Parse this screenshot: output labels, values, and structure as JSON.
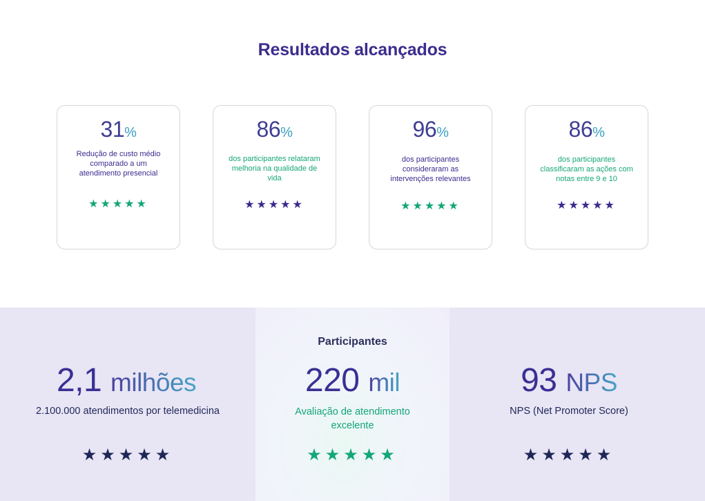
{
  "header": {
    "title_regular": "Resultados ",
    "title_bold": "alcançados"
  },
  "cards": [
    {
      "value": "31",
      "unit": "%",
      "description": "Redução de custo médio comparado a um atendimento presencial",
      "stars": "★★★★★",
      "rating": 5
    },
    {
      "value": "86",
      "unit": "%",
      "description": "dos participantes relataram melhoria na qualidade de vida",
      "stars": "★★★★★",
      "rating": 5
    },
    {
      "value": "96",
      "unit": "%",
      "description": "dos participantes consideraram as intervenções relevantes",
      "stars": "★★★★★",
      "rating": 5
    },
    {
      "value": "86",
      "unit": "%",
      "description": "dos participantes classificaram as ações com notas entre 9 e 10",
      "stars": "★★★★★",
      "rating": 5
    }
  ],
  "panels": [
    {
      "heading": "",
      "value": "2,1",
      "unit": "milhões",
      "description": "2.100.000 atendimentos por telemedicina",
      "stars": "★★★★★",
      "rating": 5
    },
    {
      "heading": "Participantes",
      "value": "220",
      "unit": "mil",
      "description": "Avaliação de atendimento excelente",
      "stars": "★★★★★",
      "rating": 5
    },
    {
      "heading": "",
      "value": "93",
      "unit": "NPS",
      "description": "NPS (Net Promoter Score)",
      "stars": "★★★★★",
      "rating": 5
    }
  ],
  "colors": {
    "title": "#3d2c8d",
    "star_green": "#14a678",
    "star_purple": "#3c2a8e",
    "star_navy": "#1e2756",
    "bottom_bg": "#e8e5f5",
    "accent_teal": "#3a9ec0"
  }
}
